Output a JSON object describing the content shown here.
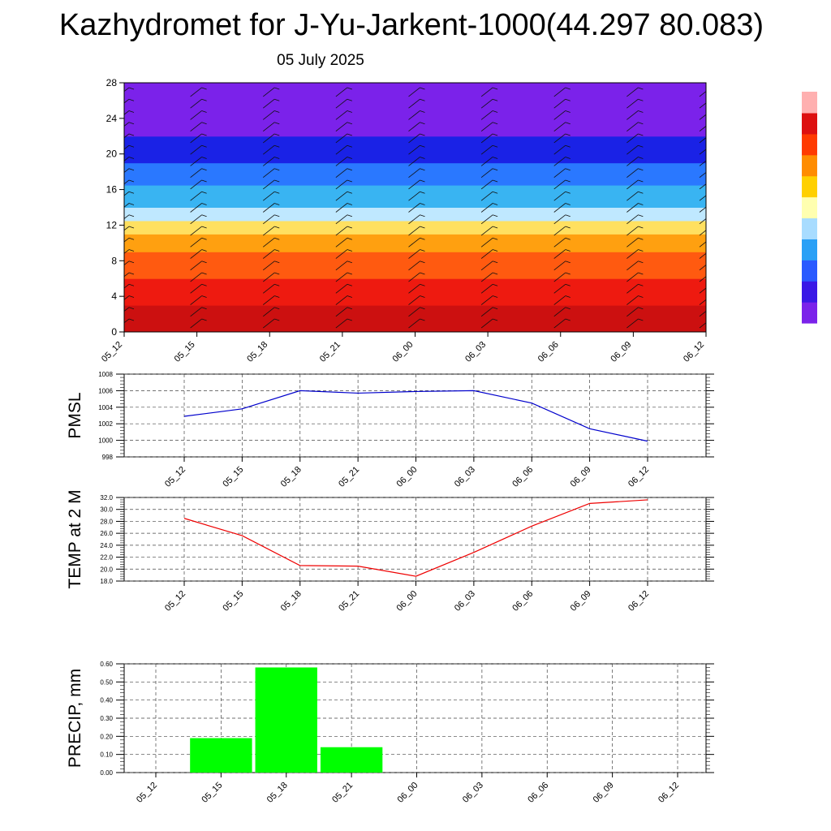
{
  "page": {
    "title": "Kazhydromet for J-Yu-Jarkent-1000(44.297 80.083)",
    "date": "05 July 2025"
  },
  "chart_data": [
    {
      "type": "heatmap",
      "name": "cross-section",
      "x_ticks": [
        "05_12",
        "05_15",
        "05_18",
        "05_21",
        "06_00",
        "06_03",
        "06_06",
        "06_09",
        "06_12"
      ],
      "y_ticks": [
        0,
        4,
        8,
        12,
        16,
        20,
        24,
        28
      ],
      "ylim": [
        0,
        28
      ],
      "layers": [
        {
          "from": 0,
          "to": 3,
          "color": "#cc1010"
        },
        {
          "from": 3,
          "to": 6,
          "color": "#ee1a10"
        },
        {
          "from": 6,
          "to": 9,
          "color": "#ff5a10"
        },
        {
          "from": 9,
          "to": 11,
          "color": "#ffa010"
        },
        {
          "from": 11,
          "to": 12.5,
          "color": "#ffe060"
        },
        {
          "from": 12.5,
          "to": 14,
          "color": "#bfe8ff"
        },
        {
          "from": 14,
          "to": 16.5,
          "color": "#39b4f2"
        },
        {
          "from": 16.5,
          "to": 19,
          "color": "#2a78ff"
        },
        {
          "from": 19,
          "to": 22,
          "color": "#1a22e6"
        },
        {
          "from": 22,
          "to": 28,
          "color": "#7b22ea"
        }
      ],
      "colorbar": [
        "#7b22ea",
        "#3a18e6",
        "#2a5aff",
        "#2aa0f6",
        "#a8dcff",
        "#ffffb0",
        "#ffd000",
        "#ff8c00",
        "#ff3a00",
        "#dd1010",
        "#ffb0b0"
      ]
    },
    {
      "type": "line",
      "name": "pmsl",
      "ylabel": "PMSL",
      "categories": [
        "05_12",
        "05_15",
        "05_18",
        "05_21",
        "06_00",
        "06_03",
        "06_06",
        "06_09",
        "06_12"
      ],
      "values": [
        1002.9,
        1003.8,
        1006.0,
        1005.7,
        1005.9,
        1006.0,
        1004.5,
        1001.4,
        999.9
      ],
      "ylim": [
        998,
        1008
      ],
      "y_ticks": [
        "998",
        "1000",
        "1002",
        "1004",
        "1006",
        "1008"
      ],
      "color": "#0000cc",
      "grid": true
    },
    {
      "type": "line",
      "name": "temp",
      "ylabel": "TEMP at 2 M",
      "categories": [
        "05_12",
        "05_15",
        "05_18",
        "05_21",
        "06_00",
        "06_03",
        "06_06",
        "06_09",
        "06_12"
      ],
      "values": [
        28.5,
        25.6,
        20.6,
        20.5,
        18.8,
        22.8,
        27.2,
        31.0,
        31.6
      ],
      "ylim": [
        18,
        32
      ],
      "y_ticks": [
        "18.0",
        "20.0",
        "22.0",
        "24.0",
        "26.0",
        "28.0",
        "30.0",
        "32.0"
      ],
      "color": "#ee0000",
      "grid": true
    },
    {
      "type": "bar",
      "name": "precip",
      "ylabel": "PRECIP, mm",
      "categories": [
        "05_12",
        "05_15",
        "05_18",
        "05_21",
        "06_00",
        "06_03",
        "06_06",
        "06_09",
        "06_12"
      ],
      "values": [
        0,
        0.19,
        0.58,
        0.14,
        0,
        0,
        0,
        0,
        0
      ],
      "ylim": [
        0,
        0.6
      ],
      "y_ticks": [
        "0.00",
        "0.10",
        "0.20",
        "0.30",
        "0.40",
        "0.50",
        "0.60"
      ],
      "color": "#00ff00",
      "grid": true
    }
  ]
}
